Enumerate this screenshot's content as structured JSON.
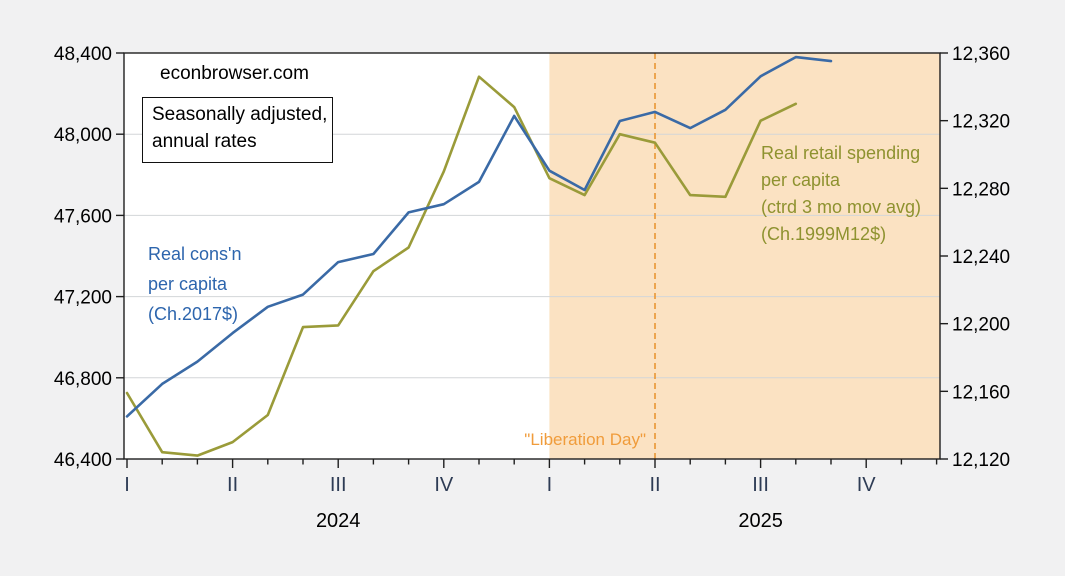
{
  "labels": {
    "watermark": "econbrowser.com",
    "note_box": [
      "Seasonally adjusted,",
      "annual rates"
    ],
    "series_blue": [
      "Real cons'n",
      "per capita",
      "(Ch.2017$)"
    ],
    "series_olive": [
      "Real retail spending",
      "per capita",
      "(ctrd 3 mo mov avg)",
      "(Ch.1999M12$)"
    ]
  },
  "colors": {
    "blue_line": "#3a6aa6",
    "blue_text": "#2d65ad",
    "olive_line": "#9a9b39",
    "olive_text": "#8e922f",
    "orange": "#ea9b3c",
    "orange_text": "#f09c3b",
    "shade": "#fbe2c2",
    "grid": "#d3d6d8",
    "axis": "#1e1e1e",
    "tick_text": "#000000",
    "quarter_text": "#2e3c55",
    "plot_bg": "#ffffff",
    "page_bg": "#f1f1f2"
  },
  "chart_data": {
    "type": "line",
    "title": "",
    "x": {
      "start": "2024-01",
      "months": 24,
      "quarter_tick_labels": [
        "I",
        "II",
        "III",
        "IV",
        "I",
        "II",
        "III",
        "IV"
      ],
      "year_labels": [
        {
          "label": "2024",
          "center_month": 6
        },
        {
          "label": "2025",
          "center_month": 18
        }
      ]
    },
    "left_axis": {
      "min": 46400,
      "max": 48400,
      "ticks": [
        "48,400",
        "48,000",
        "47,600",
        "47,200",
        "46,800",
        "46,400"
      ]
    },
    "right_axis": {
      "min": 12120,
      "max": 12360,
      "ticks": [
        "12,360",
        "12,320",
        "12,280",
        "12,240",
        "12,200",
        "12,160",
        "12,120"
      ]
    },
    "series": [
      {
        "name": "Real cons'n per capita (Ch.2017$)",
        "axis": "left",
        "color_key": "olive_is_not_me",
        "color": "blue_line",
        "start_month": 0,
        "values": [
          46610,
          46770,
          46880,
          47020,
          47150,
          47210,
          47370,
          47410,
          47615,
          47655,
          47765,
          48090,
          47820,
          47725,
          48065,
          48110,
          48030,
          48120,
          48285,
          48380,
          48360
        ]
      },
      {
        "name": "Real retail spending per capita (ctrd 3 mo mov avg) (Ch.1999M12$)",
        "axis": "right",
        "color": "olive_line",
        "start_month": 0,
        "values": [
          12159,
          12124,
          12122,
          12130,
          12146,
          12198,
          12199,
          12231,
          12245,
          12290,
          12346,
          12328,
          12286,
          12276,
          12312,
          12307,
          12276,
          12275,
          12320,
          12330
        ]
      }
    ],
    "shaded_region": {
      "start_month": 12,
      "end": "plot_right"
    },
    "vline": {
      "month": 15,
      "style": "dashed",
      "label": "\"Liberation Day\""
    },
    "grid": "horizontal-only",
    "legend_position": "none (inline text annotations)"
  }
}
